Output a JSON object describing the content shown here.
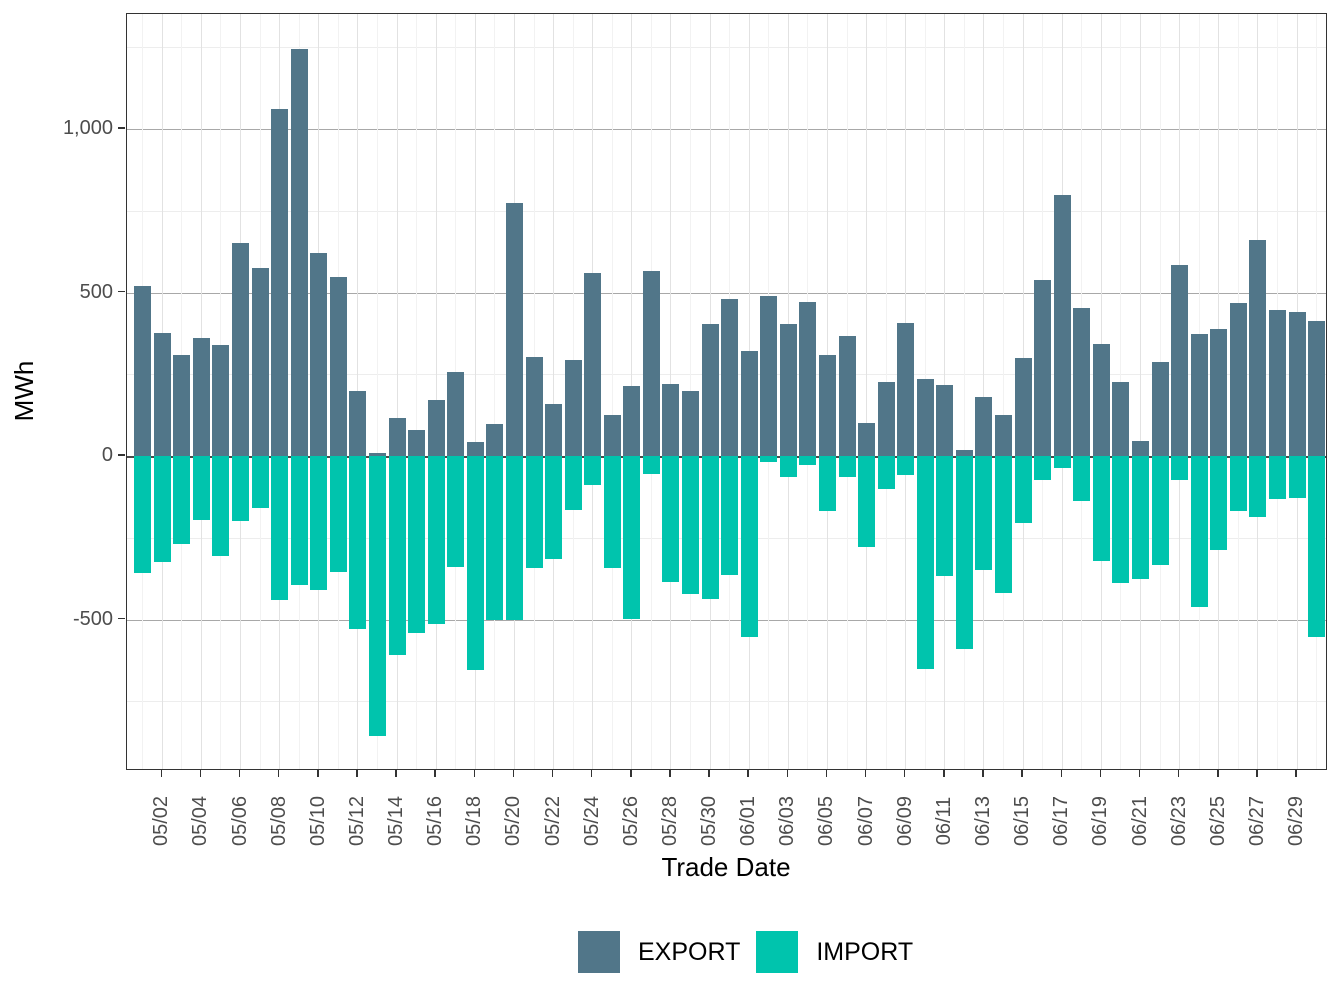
{
  "chart_data": {
    "type": "bar",
    "title": "",
    "xlabel": "Trade Date",
    "ylabel": "MWh",
    "categories": [
      "05/01",
      "05/02",
      "05/03",
      "05/04",
      "05/05",
      "05/06",
      "05/07",
      "05/08",
      "05/09",
      "05/10",
      "05/11",
      "05/12",
      "05/13",
      "05/14",
      "05/15",
      "05/16",
      "05/17",
      "05/18",
      "05/19",
      "05/20",
      "05/21",
      "05/22",
      "05/23",
      "05/24",
      "05/25",
      "05/26",
      "05/27",
      "05/28",
      "05/29",
      "05/30",
      "05/31",
      "06/01",
      "06/02",
      "06/03",
      "06/04",
      "06/05",
      "06/06",
      "06/07",
      "06/08",
      "06/09",
      "06/10",
      "06/11",
      "06/12",
      "06/13",
      "06/14",
      "06/15",
      "06/16",
      "06/17",
      "06/18",
      "06/19",
      "06/20",
      "06/21",
      "06/22",
      "06/23",
      "06/24",
      "06/25",
      "06/26",
      "06/27",
      "06/28",
      "06/29",
      "06/30"
    ],
    "series": [
      {
        "name": "EXPORT",
        "color": "#517689",
        "values": [
          520,
          375,
          308,
          361,
          339,
          650,
          575,
          1060,
          1245,
          620,
          546,
          198,
          10,
          115,
          81,
          170,
          256,
          43,
          99,
          775,
          302,
          158,
          295,
          560,
          125,
          215,
          565,
          220,
          198,
          405,
          480,
          320,
          490,
          403,
          472,
          310,
          367,
          100,
          225,
          406,
          237,
          218,
          17,
          179,
          125,
          300,
          539,
          798,
          452,
          341,
          225,
          46,
          287,
          585,
          372,
          387,
          467,
          662,
          447,
          439,
          413
        ]
      },
      {
        "name": "IMPORT",
        "color": "#00C4AD",
        "values": [
          -359,
          -323,
          -269,
          -196,
          -305,
          -200,
          -160,
          -439,
          -393,
          -410,
          -356,
          -528,
          -857,
          -610,
          -542,
          -513,
          -340,
          -653,
          -503,
          -501,
          -343,
          -315,
          -166,
          -89,
          -342,
          -498,
          -56,
          -386,
          -422,
          -437,
          -365,
          -554,
          -17,
          -64,
          -27,
          -168,
          -64,
          -277,
          -102,
          -58,
          -650,
          -368,
          -589,
          -349,
          -419,
          -206,
          -74,
          -36,
          -139,
          -320,
          -389,
          -376,
          -333,
          -74,
          -462,
          -287,
          -168,
          -186,
          -132,
          -129,
          -552
        ]
      }
    ],
    "ylim": [
      -965,
      1352
    ],
    "yticks": [
      {
        "value": 1000,
        "label": "1,000"
      },
      {
        "value": 500,
        "label": "500"
      },
      {
        "value": 0,
        "label": "0"
      },
      {
        "value": -500,
        "label": "-500"
      }
    ],
    "minor_gridlines": [
      1250,
      750,
      250,
      -250,
      -750
    ],
    "xtick_every": 2,
    "xtick_first_index": 1,
    "legend_position": "bottom",
    "grid": "on",
    "zero_line": true
  },
  "colors": {
    "export": "#517689",
    "import": "#00C4AD",
    "panel_border": "#333333",
    "major_grid": "#a8a8a8",
    "minor_grid": "#ededed",
    "zero_line": "#4a4a4a",
    "tick_text": "#4d4d4d",
    "title_text": "#000000"
  }
}
